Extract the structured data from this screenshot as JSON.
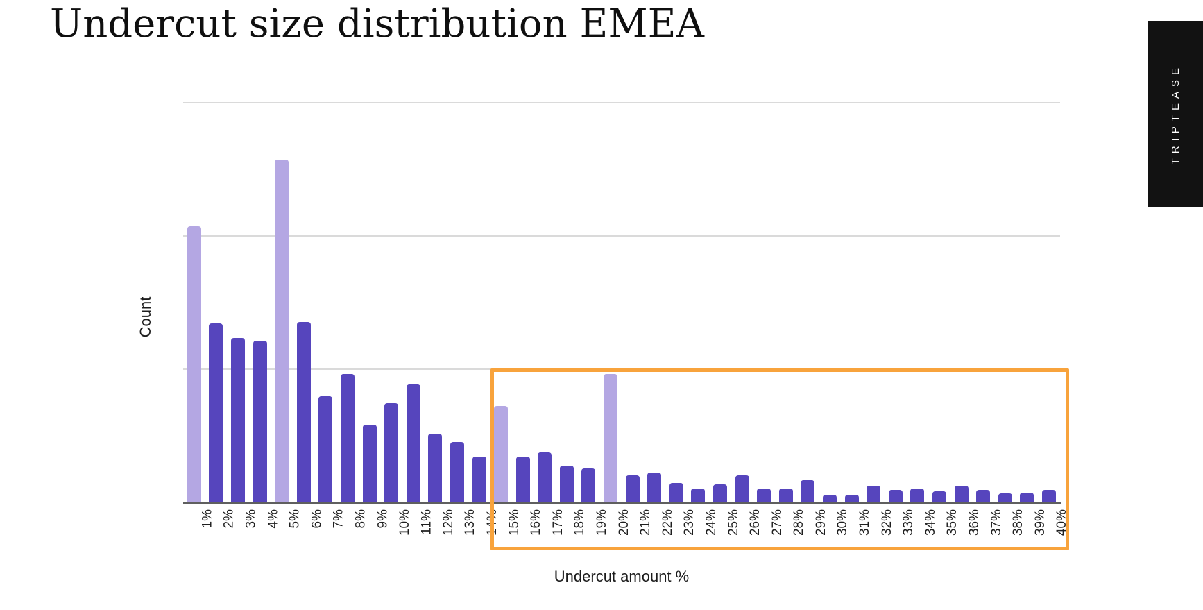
{
  "title": "Undercut size distribution EMEA",
  "brand_banner": {
    "label": "TRIPTEASE",
    "background": "#121212",
    "text_color": "#ffffff"
  },
  "chart_data": {
    "type": "bar",
    "title": "Undercut size distribution EMEA",
    "xlabel": "Undercut amount %",
    "ylabel": "Count",
    "categories": [
      "1%",
      "2%",
      "3%",
      "4%",
      "5%",
      "6%",
      "7%",
      "8%",
      "9%",
      "10%",
      "11%",
      "12%",
      "13%",
      "14%",
      "15%",
      "16%",
      "17%",
      "18%",
      "19%",
      "20%",
      "21%",
      "22%",
      "23%",
      "24%",
      "25%",
      "26%",
      "27%",
      "28%",
      "29%",
      "30%",
      "31%",
      "32%",
      "33%",
      "34%",
      "35%",
      "36%",
      "37%",
      "38%",
      "39%",
      "40%"
    ],
    "values": [
      2.07,
      1.34,
      1.23,
      1.21,
      2.57,
      1.35,
      0.79,
      0.96,
      0.58,
      0.74,
      0.88,
      0.51,
      0.45,
      0.34,
      0.72,
      0.34,
      0.37,
      0.27,
      0.25,
      0.96,
      0.2,
      0.22,
      0.14,
      0.1,
      0.13,
      0.2,
      0.1,
      0.1,
      0.16,
      0.05,
      0.05,
      0.12,
      0.09,
      0.1,
      0.08,
      0.12,
      0.09,
      0.06,
      0.07,
      0.09
    ],
    "value_note": "y axis has no numeric tick labels; values expressed in gridline units (one unit = one gridline interval)",
    "ylim": [
      0,
      3
    ],
    "grid": "3 horizontal unlabeled gridlines above baseline",
    "legend": "none",
    "x_tick_rotation": -90,
    "bar_color": "#5645BD",
    "highlight_bar_color": "#B4A7E3",
    "highlighted_categories": [
      "1%",
      "5%",
      "15%",
      "20%"
    ],
    "annotation_box": {
      "from_category": "15%",
      "to_category": "40%",
      "border_color": "#F8A33C"
    }
  },
  "colors": {
    "background": "#ffffff",
    "gridline": "#dadada",
    "axis_line": "#5f5f5f",
    "text": "#1c1c1c"
  }
}
